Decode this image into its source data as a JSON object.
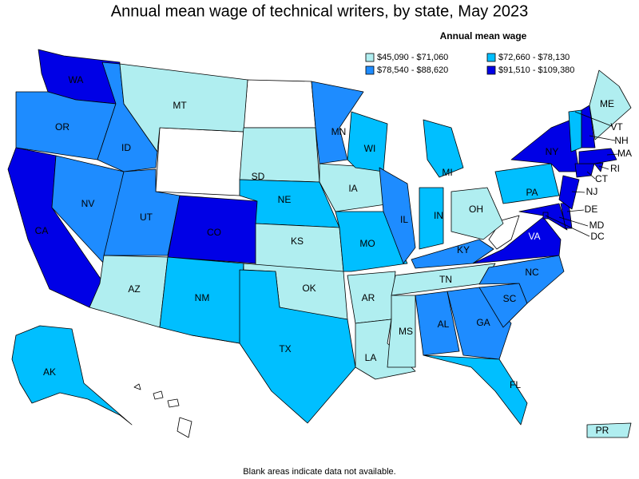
{
  "title": "Annual mean wage of technical writers, by state, May 2023",
  "legend": {
    "title": "Annual mean wage",
    "items": [
      {
        "label": "$45,090 - $71,060",
        "color": "#b0eef0"
      },
      {
        "label": "$72,660 - $78,130",
        "color": "#00bfff"
      },
      {
        "label": "$78,540 - $88,620",
        "color": "#1e8cff"
      },
      {
        "label": "$91,510 - $109,380",
        "color": "#0000e6"
      }
    ]
  },
  "states": [
    {
      "label": "WA",
      "color": "#0000e6"
    },
    {
      "label": "OR",
      "color": "#1e8cff"
    },
    {
      "label": "CA",
      "color": "#0000e6"
    },
    {
      "label": "NV",
      "color": "#1e8cff"
    },
    {
      "label": "ID",
      "color": "#1e8cff"
    },
    {
      "label": "MT",
      "color": "#b0eef0"
    },
    {
      "label": "UT",
      "color": "#1e8cff"
    },
    {
      "label": "CO",
      "color": "#0000e6"
    },
    {
      "label": "AZ",
      "color": "#b0eef0"
    },
    {
      "label": "NM",
      "color": "#00bfff"
    },
    {
      "label": "SD",
      "color": "#b0eef0"
    },
    {
      "label": "NE",
      "color": "#00bfff"
    },
    {
      "label": "KS",
      "color": "#b0eef0"
    },
    {
      "label": "OK",
      "color": "#b0eef0"
    },
    {
      "label": "TX",
      "color": "#00bfff"
    },
    {
      "label": "MN",
      "color": "#1e8cff"
    },
    {
      "label": "IA",
      "color": "#b0eef0"
    },
    {
      "label": "MO",
      "color": "#00bfff"
    },
    {
      "label": "AR",
      "color": "#b0eef0"
    },
    {
      "label": "LA",
      "color": "#b0eef0"
    },
    {
      "label": "WI",
      "color": "#00bfff"
    },
    {
      "label": "IL",
      "color": "#1e8cff"
    },
    {
      "label": "MI",
      "color": "#00bfff"
    },
    {
      "label": "IN",
      "color": "#00bfff"
    },
    {
      "label": "OH",
      "color": "#b0eef0"
    },
    {
      "label": "KY",
      "color": "#1e8cff"
    },
    {
      "label": "TN",
      "color": "#b0eef0"
    },
    {
      "label": "MS",
      "color": "#b0eef0"
    },
    {
      "label": "AL",
      "color": "#1e8cff"
    },
    {
      "label": "GA",
      "color": "#1e8cff"
    },
    {
      "label": "FL",
      "color": "#00bfff"
    },
    {
      "label": "SC",
      "color": "#1e8cff"
    },
    {
      "label": "NC",
      "color": "#1e8cff"
    },
    {
      "label": "VA",
      "color": "#0000e6"
    },
    {
      "label": "PA",
      "color": "#00bfff"
    },
    {
      "label": "NY",
      "color": "#0000e6"
    },
    {
      "label": "MD",
      "color": "#0000e6"
    },
    {
      "label": "DE",
      "color": "#0000e6"
    },
    {
      "label": "NJ",
      "color": "#0000e6"
    },
    {
      "label": "DC",
      "color": "#0000e6"
    },
    {
      "label": "CT",
      "color": "#0000e6"
    },
    {
      "label": "RI",
      "color": "#0000e6"
    },
    {
      "label": "MA",
      "color": "#0000e6"
    },
    {
      "label": "VT",
      "color": "#00bfff"
    },
    {
      "label": "NH",
      "color": "#0000e6"
    },
    {
      "label": "ME",
      "color": "#b0eef0"
    },
    {
      "label": "AK",
      "color": "#00bfff"
    },
    {
      "label": "PR",
      "color": "#b0eef0"
    }
  ],
  "note": "Blank areas indicate data not available."
}
